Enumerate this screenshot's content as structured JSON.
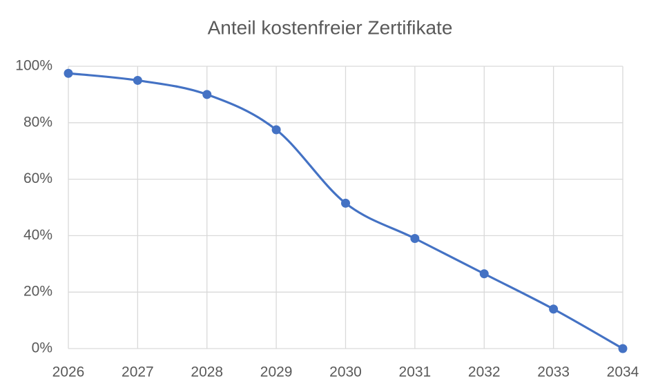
{
  "chart_data": {
    "type": "line",
    "title": "Anteil  kostenfreier Zertifikate",
    "x": [
      2026,
      2027,
      2028,
      2029,
      2030,
      2031,
      2032,
      2033,
      2034
    ],
    "values": [
      97.5,
      95,
      90,
      77.5,
      51.5,
      39,
      26.5,
      14,
      0
    ],
    "color": "#4472c4",
    "smooth": true,
    "grid": true,
    "xlim": [
      2026,
      2034
    ],
    "xticks": [
      2026,
      2027,
      2028,
      2029,
      2030,
      2031,
      2032,
      2033,
      2034
    ],
    "ylim": [
      0,
      100
    ],
    "yticks": [
      {
        "value": 0,
        "label": "0%"
      },
      {
        "value": 20,
        "label": "20%"
      },
      {
        "value": 40,
        "label": "40%"
      },
      {
        "value": 60,
        "label": "60%"
      },
      {
        "value": 80,
        "label": "80%"
      },
      {
        "value": 100,
        "label": "100%"
      }
    ]
  }
}
